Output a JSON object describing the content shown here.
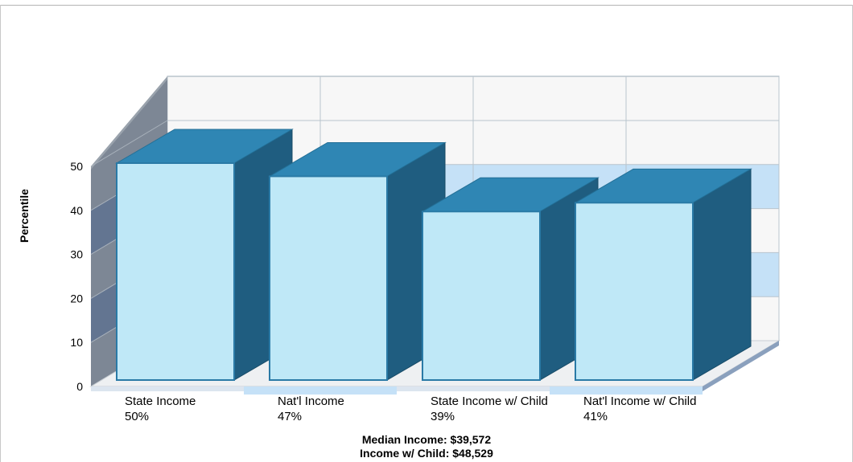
{
  "chart_data": {
    "type": "bar",
    "categories": [
      "State Income",
      "Nat'l Income",
      "State Income w/ Child",
      "Nat'l Income w/ Child"
    ],
    "value_labels": [
      "50%",
      "47%",
      "39%",
      "41%"
    ],
    "values": [
      50,
      47,
      39,
      41
    ],
    "ylabel": "Percentile",
    "ylim": [
      0,
      50
    ],
    "yticks": [
      0,
      10,
      20,
      30,
      40,
      50
    ],
    "grid": true,
    "style": "3d",
    "colors": {
      "bar_front": "#bfe8f7",
      "bar_top": "#2f86b4",
      "bar_side": "#1f5d80",
      "band": "#c5e1f7"
    },
    "notes": [
      "Median Income: $39,572",
      "Income w/ Child: $48,529"
    ]
  }
}
